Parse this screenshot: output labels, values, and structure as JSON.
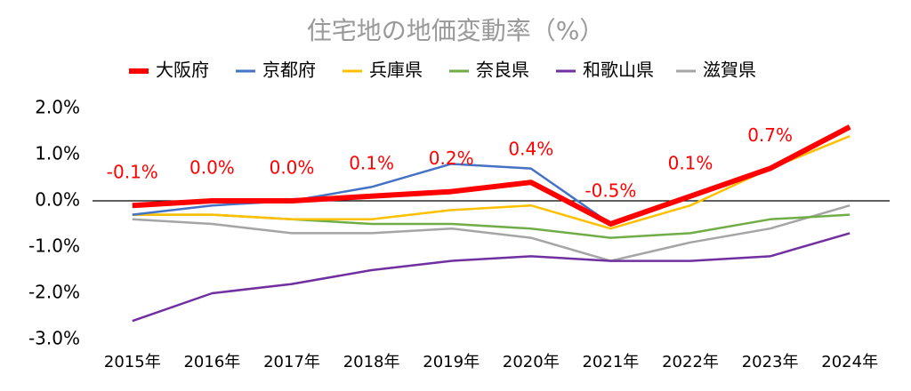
{
  "chart_data": {
    "type": "line",
    "title": "住宅地の地価変動率（%）",
    "categories": [
      "2015年",
      "2016年",
      "2017年",
      "2018年",
      "2019年",
      "2020年",
      "2021年",
      "2022年",
      "2023年",
      "2024年"
    ],
    "series": [
      {
        "name": "大阪府",
        "color": "#ff0000",
        "values": [
          -0.1,
          0.0,
          0.0,
          0.1,
          0.2,
          0.4,
          -0.5,
          0.1,
          0.7,
          1.6
        ],
        "value_labels": [
          "-0.1%",
          "0.0%",
          "0.0%",
          "0.1%",
          "0.2%",
          "0.4%",
          "-0.5%",
          "0.1%",
          "0.7%",
          null
        ]
      },
      {
        "name": "京都府",
        "color": "#4472c4",
        "values": [
          -0.3,
          -0.1,
          0.0,
          0.3,
          0.8,
          0.7,
          -0.5,
          0.1,
          0.7,
          1.6
        ]
      },
      {
        "name": "兵庫県",
        "color": "#ffc000",
        "values": [
          -0.3,
          -0.3,
          -0.4,
          -0.4,
          -0.2,
          -0.1,
          -0.6,
          -0.1,
          0.7,
          1.4
        ]
      },
      {
        "name": "奈良県",
        "color": "#70ad47",
        "values": [
          -0.3,
          -0.3,
          -0.4,
          -0.5,
          -0.5,
          -0.6,
          -0.8,
          -0.7,
          -0.4,
          -0.3
        ]
      },
      {
        "name": "和歌山県",
        "color": "#7030a0",
        "values": [
          -2.6,
          -2.0,
          -1.8,
          -1.5,
          -1.3,
          -1.2,
          -1.3,
          -1.3,
          -1.2,
          -0.7
        ]
      },
      {
        "name": "滋賀県",
        "color": "#a5a5a5",
        "values": [
          -0.4,
          -0.5,
          -0.7,
          -0.7,
          -0.6,
          -0.8,
          -1.3,
          -0.9,
          -0.6,
          -0.1
        ]
      }
    ],
    "ylim": [
      -3,
      2
    ],
    "yticks": [
      {
        "value": -3,
        "label": "-3.0%"
      },
      {
        "value": -2,
        "label": "-2.0%"
      },
      {
        "value": -1,
        "label": "-1.0%"
      },
      {
        "value": 0,
        "label": "0.0%"
      },
      {
        "value": 1,
        "label": "1.0%"
      },
      {
        "value": 2,
        "label": "2.0%"
      }
    ],
    "grid": false,
    "legend": "top"
  }
}
